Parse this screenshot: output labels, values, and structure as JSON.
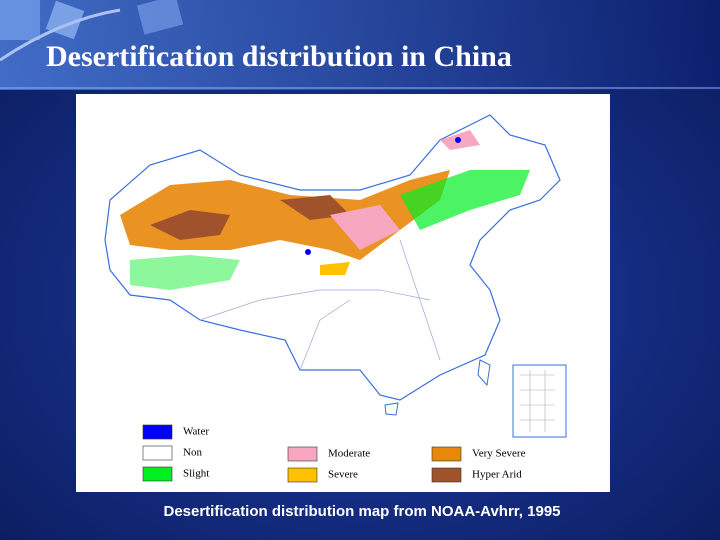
{
  "title": "Desertification distribution in China",
  "caption": "Desertification distribution map from NOAA-Avhrr, 1995",
  "legend": {
    "items": [
      {
        "label": "Water",
        "color": "#0000ff"
      },
      {
        "label": "Non",
        "color": "#ffffff"
      },
      {
        "label": "Slight",
        "color": "#00ee22"
      },
      {
        "label": "Moderate",
        "color": "#f7a8c0"
      },
      {
        "label": "Severe",
        "color": "#ffc000"
      },
      {
        "label": "Very Severe",
        "color": "#e8870a"
      },
      {
        "label": "Hyper Arid",
        "color": "#a0522d"
      }
    ]
  }
}
